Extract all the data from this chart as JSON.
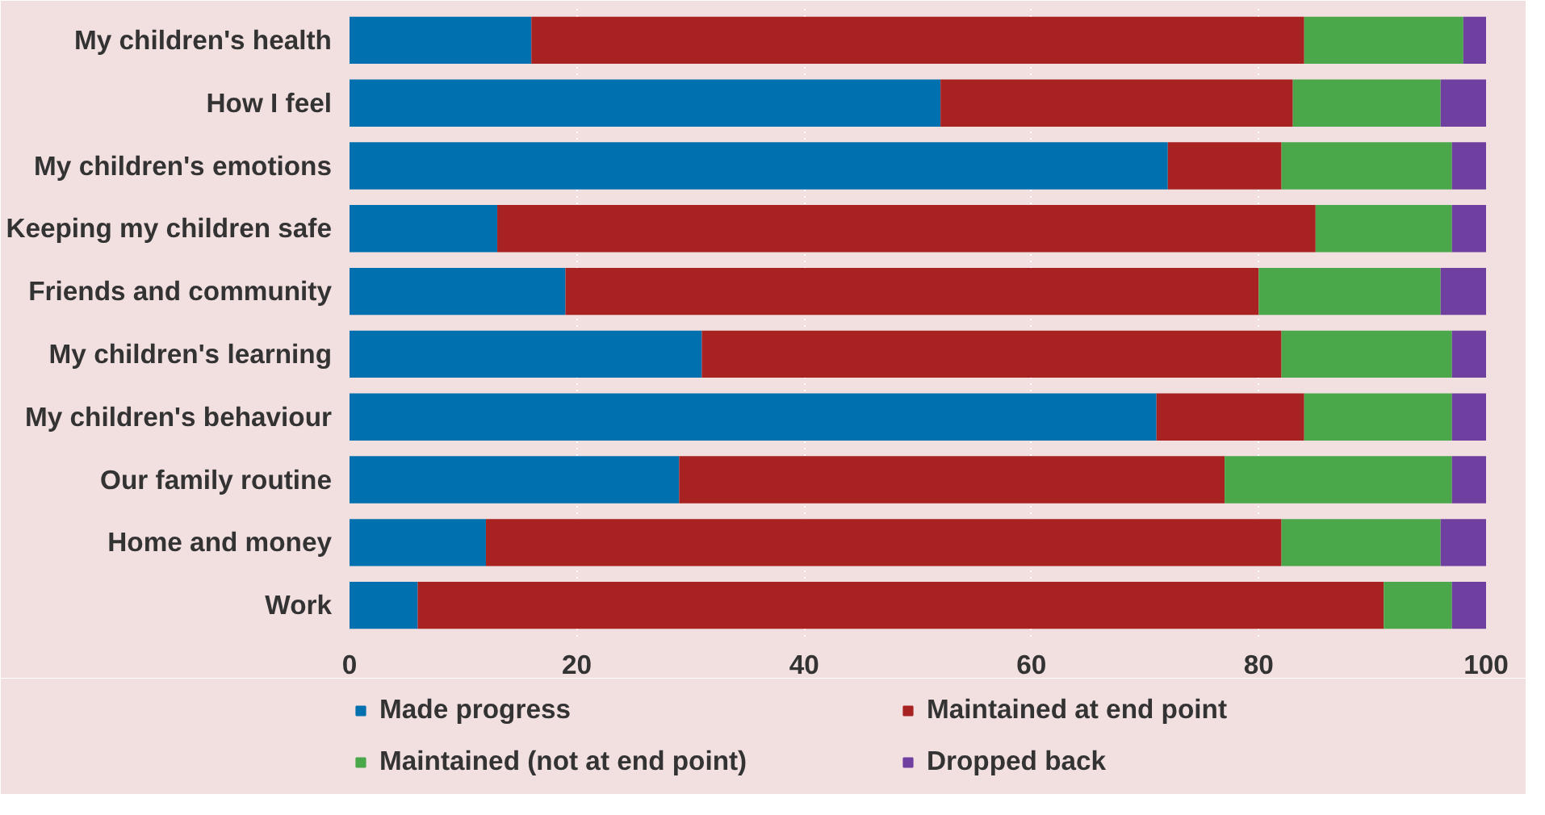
{
  "chart_data": {
    "type": "bar",
    "orientation": "horizontal",
    "stacked": true,
    "categories": [
      "My children's health",
      "How I feel",
      "My children's emotions",
      "Keeping my children safe",
      "Friends and community",
      "My children's learning",
      "My children's behaviour",
      "Our family routine",
      "Home and money",
      "Work"
    ],
    "series": [
      {
        "name": "Made progress",
        "color": "#0071ae",
        "values": [
          16,
          52,
          72,
          13,
          19,
          31,
          71,
          29,
          12,
          6
        ]
      },
      {
        "name": "Maintained at end point",
        "color": "#a82222",
        "values": [
          68,
          31,
          10,
          72,
          61,
          51,
          13,
          48,
          70,
          85
        ]
      },
      {
        "name": "Maintained (not at end point)",
        "color": "#4aa84a",
        "values": [
          14,
          13,
          15,
          12,
          16,
          15,
          13,
          20,
          14,
          6
        ]
      },
      {
        "name": "Dropped back",
        "color": "#7040a0",
        "values": [
          2,
          4,
          3,
          3,
          4,
          3,
          3,
          3,
          4,
          3
        ]
      }
    ],
    "xlim": [
      0,
      100
    ],
    "xticks": [
      0,
      20,
      40,
      60,
      80,
      100
    ],
    "grid": "x",
    "legend": "bottom"
  }
}
